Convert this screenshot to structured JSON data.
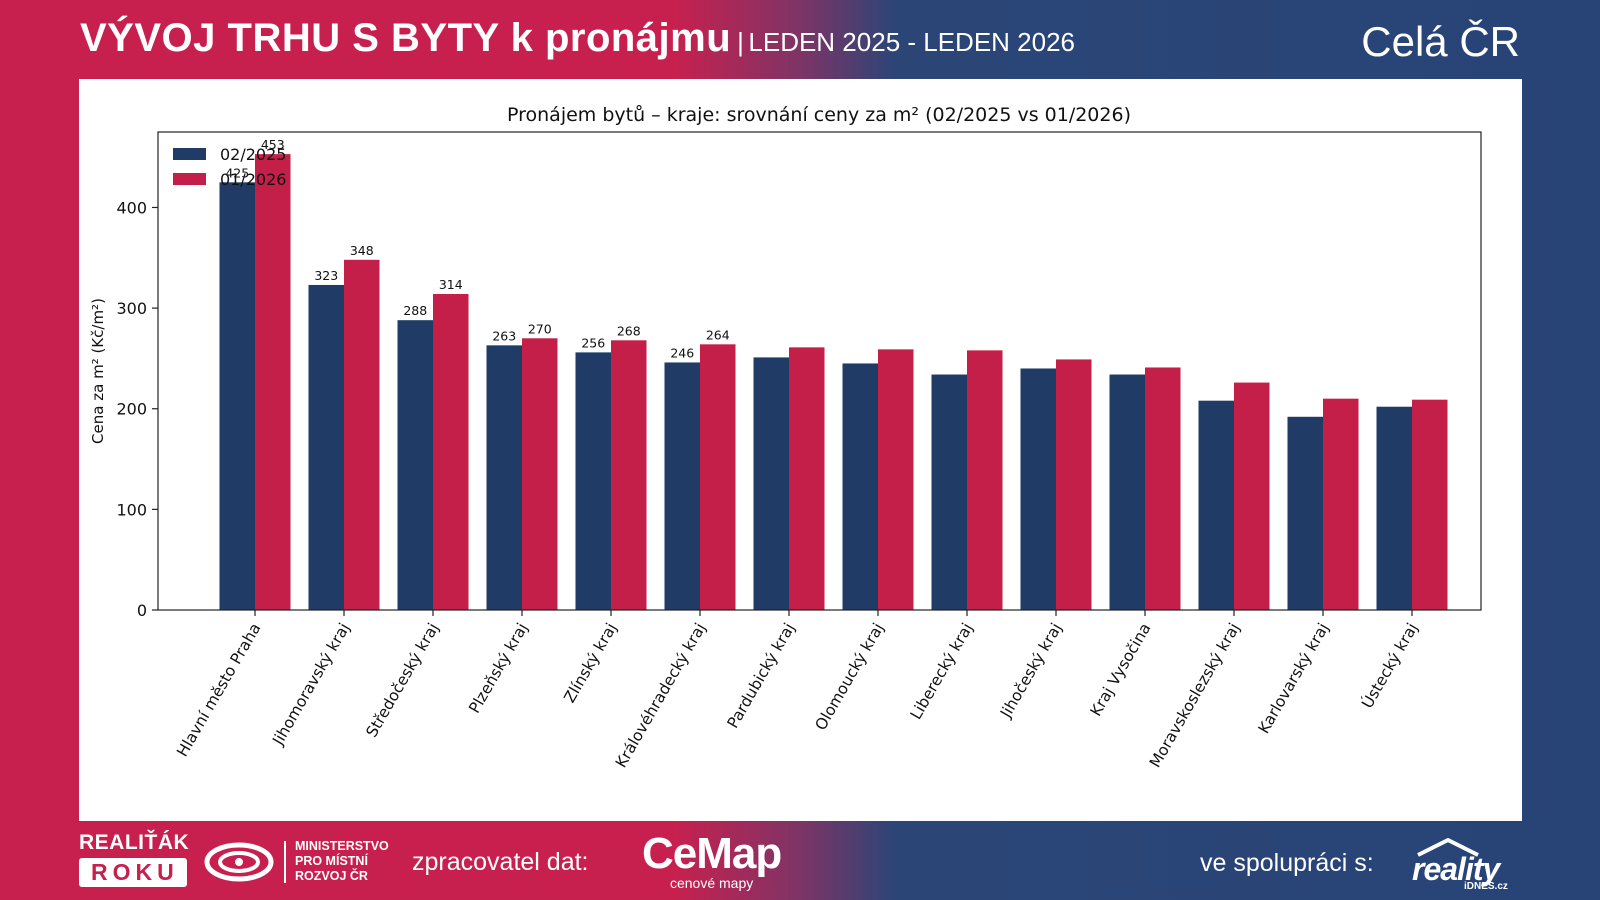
{
  "header": {
    "title": "VÝVOJ TRHU S BYTY k pronájmu",
    "separator": "|",
    "period": "LEDEN 2025 - LEDEN 2026",
    "region": "Celá ČR"
  },
  "footer": {
    "award_line1": "REALIŤÁK",
    "award_line2": "ROKU",
    "ministry_line1": "MINISTERSTVO",
    "ministry_line2": "PRO MÍSTNÍ",
    "ministry_line3": "ROZVOJ ČR",
    "processor_label": "zpracovatel dat:",
    "cemap_name": "CeMap",
    "cemap_sub": "cenové mapy",
    "coop_label": "ve spolupráci s:",
    "reality_name": "reality",
    "reality_sub": "iDNES.cz"
  },
  "colors": {
    "series_2025": "#1f3b66",
    "series_2026": "#c41f48",
    "accent_red": "#c8204e",
    "accent_blue": "#284476"
  },
  "chart_data": {
    "type": "bar",
    "title": "Pronájem bytů – kraje: srovnání ceny za m² (02/2025 vs 01/2026)",
    "xlabel": "",
    "ylabel": "Cena za m² (Kč/m²)",
    "ylim": [
      0,
      475
    ],
    "yticks": [
      0,
      100,
      200,
      300,
      400
    ],
    "grid": false,
    "legend_position": "top-left",
    "categories": [
      "Hlavní město Praha",
      "Jihomoravský kraj",
      "Středočeský kraj",
      "Plzeňský kraj",
      "Zlínský kraj",
      "Královéhradecký kraj",
      "Pardubický kraj",
      "Olomoucký kraj",
      "Liberecký kraj",
      "Jihočeský kraj",
      "Kraj Vysočina",
      "Moravskoslezský kraj",
      "Karlovarský kraj",
      "Ústecký kraj"
    ],
    "series": [
      {
        "name": "02/2025",
        "values": [
          425,
          323,
          288,
          263,
          256,
          246,
          251,
          245,
          234,
          240,
          234,
          208,
          192,
          202
        ]
      },
      {
        "name": "01/2026",
        "values": [
          453,
          348,
          314,
          270,
          268,
          264,
          261,
          259,
          258,
          249,
          241,
          226,
          210,
          209
        ]
      }
    ],
    "labeled_count": 6
  }
}
